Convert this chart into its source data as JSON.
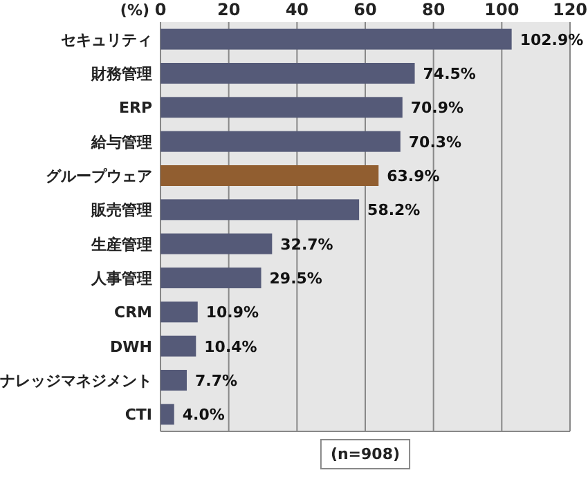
{
  "chart_data": {
    "type": "bar",
    "orientation": "horizontal",
    "xlabel": "(%)",
    "categories": [
      "セキュリティ",
      "財務管理",
      "ERP",
      "給与管理",
      "グループウェア",
      "販売管理",
      "生産管理",
      "人事管理",
      "CRM",
      "DWH",
      "ナレッジマネジメント",
      "CTI"
    ],
    "values": [
      102.9,
      74.5,
      70.9,
      70.3,
      63.9,
      58.2,
      32.7,
      29.5,
      10.9,
      10.4,
      7.7,
      4.0
    ],
    "colors": [
      "#555a78",
      "#555a78",
      "#555a78",
      "#555a78",
      "#915e30",
      "#555a78",
      "#555a78",
      "#555a78",
      "#555a78",
      "#555a78",
      "#555a78",
      "#555a78"
    ],
    "value_labels": [
      "102.9%",
      "74.5%",
      "70.9%",
      "70.3%",
      "63.9%",
      "58.2%",
      "32.7%",
      "29.5%",
      "10.9%",
      "10.4%",
      "7.7%",
      "4.0%"
    ],
    "xlim": [
      0,
      120
    ],
    "xticks": [
      0,
      20,
      40,
      60,
      80,
      100,
      120
    ],
    "grid": "x",
    "annotations": [
      "(n=908)"
    ]
  }
}
